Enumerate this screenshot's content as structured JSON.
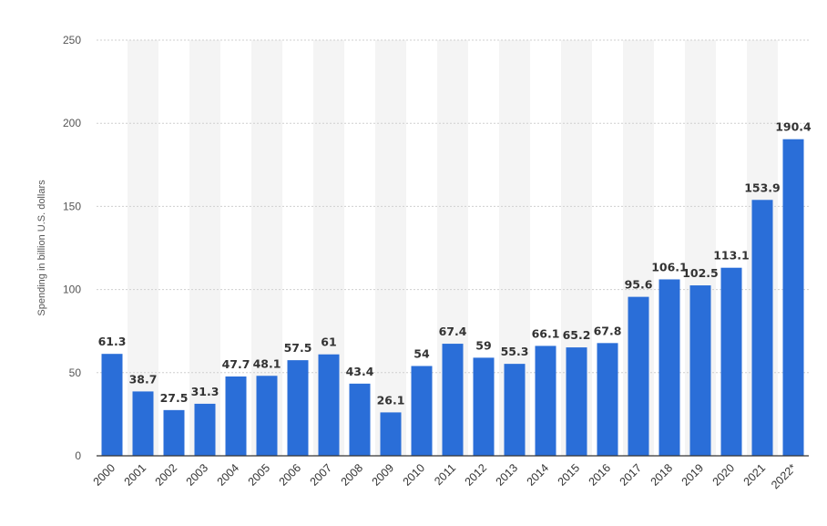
{
  "chart_data": {
    "type": "bar",
    "ylabel": "Spending in billion U.S. dollars",
    "ylim": [
      0,
      250
    ],
    "yticks": [
      0,
      50,
      100,
      150,
      200,
      250
    ],
    "grid": true,
    "categories": [
      "2000",
      "2001",
      "2002",
      "2003",
      "2004",
      "2005",
      "2006",
      "2007",
      "2008",
      "2009",
      "2010",
      "2011",
      "2012",
      "2013",
      "2014",
      "2015",
      "2016",
      "2017",
      "2018",
      "2019",
      "2020",
      "2021",
      "2022*"
    ],
    "values": [
      61.3,
      38.7,
      27.5,
      31.3,
      47.7,
      48.1,
      57.5,
      61,
      43.4,
      26.1,
      54,
      67.4,
      59,
      55.3,
      66.1,
      65.2,
      67.8,
      95.6,
      106.1,
      102.5,
      113.1,
      153.9,
      190.4
    ],
    "value_labels": [
      "61.3",
      "38.7",
      "27.5",
      "31.3",
      "47.7",
      "48.1",
      "57.5",
      "61",
      "43.4",
      "26.1",
      "54",
      "67.4",
      "59",
      "55.3",
      "66.1",
      "65.2",
      "67.8",
      "95.6",
      "106.1",
      "102.5",
      "113.1",
      "153.9",
      "190.4"
    ],
    "colors": {
      "bar": "#2a6ed8",
      "stripe": "#f4f4f4",
      "grid": "#cfcfcf",
      "axis": "#333333"
    }
  }
}
